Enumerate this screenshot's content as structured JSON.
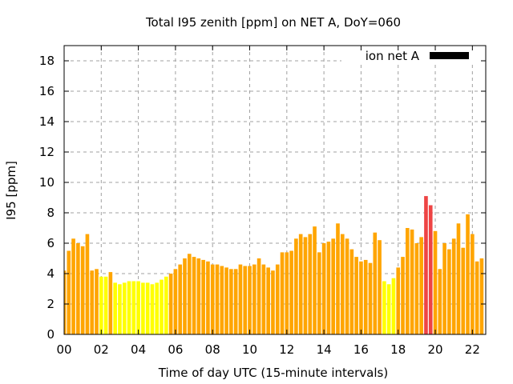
{
  "chart_data": {
    "type": "bar",
    "title": "Total I95 zenith [ppm] on NET A, DoY=060",
    "xlabel": "Time of day UTC (15-minute intervals)",
    "ylabel": "I95 [ppm]",
    "xlim": [
      0,
      22.72
    ],
    "ylim": [
      0,
      19
    ],
    "grid": true,
    "legend": {
      "label": "ion net A",
      "placement": "top-right",
      "color": "#000000"
    },
    "x_ticks": [
      "00",
      "02",
      "04",
      "06",
      "08",
      "10",
      "12",
      "14",
      "16",
      "18",
      "20",
      "22"
    ],
    "y_ticks": [
      "0",
      "2",
      "4",
      "6",
      "8",
      "10",
      "12",
      "14",
      "16",
      "18"
    ],
    "interval_hours": 0.25,
    "color_thresholds": {
      "low_below": 4,
      "high_above": 8,
      "low_color": "#ffff00",
      "mid_color": "#ffa500",
      "high_color": "#ee4444"
    },
    "values": [
      4.2,
      5.5,
      6.3,
      6.0,
      5.8,
      6.6,
      4.2,
      4.3,
      3.8,
      3.8,
      4.1,
      3.4,
      3.3,
      3.4,
      3.5,
      3.5,
      3.5,
      3.4,
      3.4,
      3.3,
      3.4,
      3.6,
      3.8,
      4.0,
      4.3,
      4.6,
      5.0,
      5.3,
      5.1,
      5.0,
      4.9,
      4.8,
      4.6,
      4.6,
      4.5,
      4.4,
      4.3,
      4.3,
      4.6,
      4.5,
      4.5,
      4.6,
      5.0,
      4.6,
      4.4,
      4.2,
      4.6,
      5.4,
      5.4,
      5.5,
      6.3,
      6.6,
      6.4,
      6.6,
      7.1,
      5.4,
      6.0,
      6.1,
      6.3,
      7.3,
      6.6,
      6.3,
      5.6,
      5.1,
      4.8,
      4.9,
      4.7,
      6.7,
      6.2,
      3.5,
      3.3,
      3.7,
      4.4,
      5.1,
      7.0,
      6.9,
      6.0,
      6.4,
      9.1,
      8.5,
      6.8,
      4.3,
      6.0,
      5.6,
      6.3,
      7.3,
      5.7,
      7.9,
      6.6,
      4.8,
      5.0
    ]
  }
}
